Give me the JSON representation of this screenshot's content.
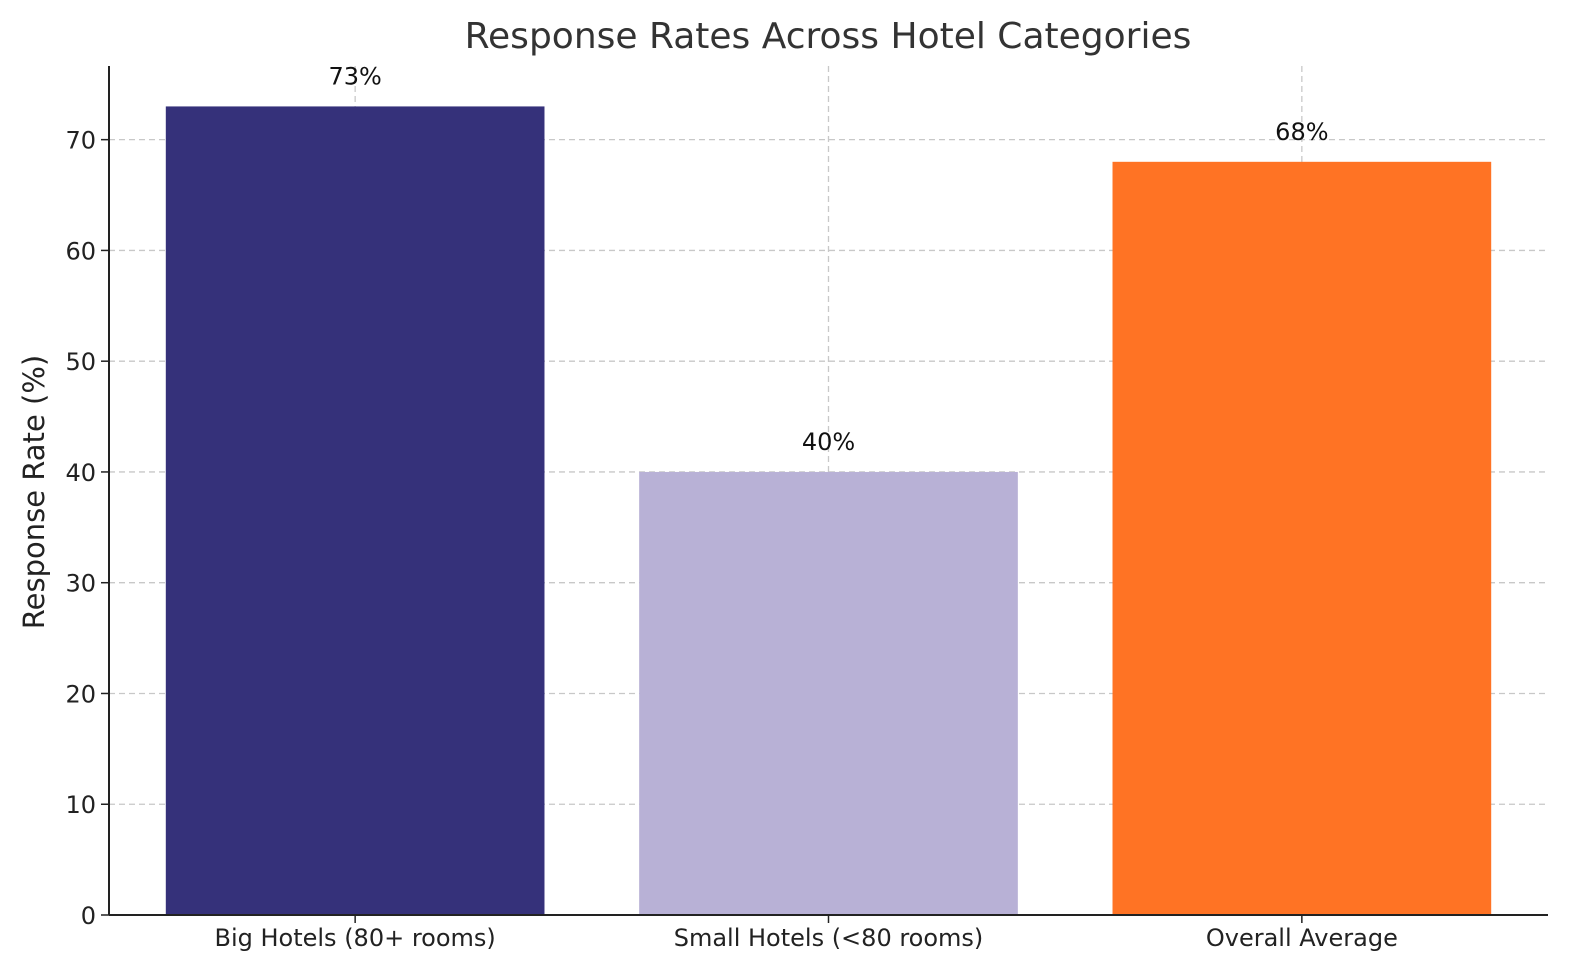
{
  "chart_data": {
    "type": "bar",
    "title": "Response Rates Across Hotel Categories",
    "xlabel": "",
    "ylabel": "Response Rate (%)",
    "categories": [
      "Big Hotels (80+ rooms)",
      "Small Hotels (<80 rooms)",
      "Overall Average"
    ],
    "values": [
      73,
      40,
      68
    ],
    "data_labels": [
      "73%",
      "40%",
      "68%"
    ],
    "colors": [
      "#35317a",
      "#b8b1d6",
      "#ff7324"
    ],
    "ylim": [
      0,
      76.65
    ],
    "yticks": [
      0,
      10,
      20,
      30,
      40,
      50,
      60,
      70
    ],
    "grid": true,
    "legend": "none"
  }
}
